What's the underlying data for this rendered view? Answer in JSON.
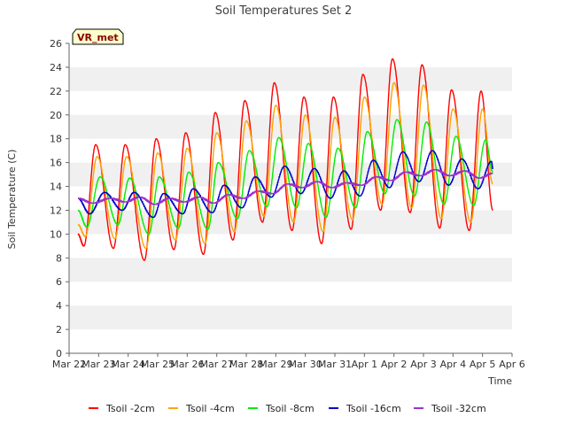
{
  "chart_data": {
    "type": "line",
    "title": "Soil Temperatures Set 2",
    "xlabel": "Time",
    "ylabel": "Soil Temperature (C)",
    "badge": "VR_met",
    "ylim": [
      0,
      26
    ],
    "yticks": [
      0,
      2,
      4,
      6,
      8,
      10,
      12,
      14,
      16,
      18,
      20,
      22,
      24,
      26
    ],
    "xlim": [
      0,
      15
    ],
    "xticks": [
      {
        "v": 0,
        "label": "Mar 22"
      },
      {
        "v": 1,
        "label": "Mar 23"
      },
      {
        "v": 2,
        "label": "Mar 24"
      },
      {
        "v": 3,
        "label": "Mar 25"
      },
      {
        "v": 4,
        "label": "Mar 26"
      },
      {
        "v": 5,
        "label": "Mar 27"
      },
      {
        "v": 6,
        "label": "Mar 28"
      },
      {
        "v": 7,
        "label": "Mar 29"
      },
      {
        "v": 8,
        "label": "Mar 30"
      },
      {
        "v": 9,
        "label": "Mar 31"
      },
      {
        "v": 10,
        "label": "Apr 1"
      },
      {
        "v": 11,
        "label": "Apr 2"
      },
      {
        "v": 12,
        "label": "Apr 3"
      },
      {
        "v": 13,
        "label": "Apr 4"
      },
      {
        "v": 14,
        "label": "Apr 5"
      },
      {
        "v": 15,
        "label": "Apr 6"
      }
    ],
    "grid": "horizontal alternating bands",
    "legend_position": "bottom",
    "series": [
      {
        "name": "Tsoil -2cm",
        "color": "#ff0000",
        "points": [
          [
            0.3,
            10.0
          ],
          [
            0.5,
            9.0
          ],
          [
            0.9,
            17.5
          ],
          [
            1.5,
            8.8
          ],
          [
            1.9,
            17.5
          ],
          [
            2.55,
            7.8
          ],
          [
            2.95,
            18.0
          ],
          [
            3.55,
            8.7
          ],
          [
            3.95,
            18.5
          ],
          [
            4.55,
            8.3
          ],
          [
            4.95,
            20.2
          ],
          [
            5.55,
            9.5
          ],
          [
            5.95,
            21.2
          ],
          [
            6.55,
            11.0
          ],
          [
            6.95,
            22.7
          ],
          [
            7.55,
            10.3
          ],
          [
            7.95,
            21.5
          ],
          [
            8.55,
            9.2
          ],
          [
            8.95,
            21.5
          ],
          [
            9.55,
            10.4
          ],
          [
            9.95,
            23.4
          ],
          [
            10.55,
            12.0
          ],
          [
            10.95,
            24.7
          ],
          [
            11.55,
            11.8
          ],
          [
            11.95,
            24.2
          ],
          [
            12.55,
            10.5
          ],
          [
            12.95,
            22.1
          ],
          [
            13.55,
            10.3
          ],
          [
            13.95,
            22.0
          ],
          [
            14.35,
            12.0
          ]
        ]
      },
      {
        "name": "Tsoil -4cm",
        "color": "#ffa500",
        "points": [
          [
            0.3,
            10.8
          ],
          [
            0.55,
            9.8
          ],
          [
            0.95,
            16.5
          ],
          [
            1.55,
            9.6
          ],
          [
            1.95,
            16.5
          ],
          [
            2.6,
            8.8
          ],
          [
            3.0,
            16.8
          ],
          [
            3.6,
            9.5
          ],
          [
            4.0,
            17.2
          ],
          [
            4.6,
            9.2
          ],
          [
            5.0,
            18.5
          ],
          [
            5.6,
            10.2
          ],
          [
            6.0,
            19.5
          ],
          [
            6.6,
            11.5
          ],
          [
            7.0,
            20.8
          ],
          [
            7.6,
            11.0
          ],
          [
            8.0,
            20.0
          ],
          [
            8.6,
            10.2
          ],
          [
            9.0,
            19.8
          ],
          [
            9.6,
            11.2
          ],
          [
            10.0,
            21.5
          ],
          [
            10.6,
            12.5
          ],
          [
            11.0,
            22.7
          ],
          [
            11.6,
            12.2
          ],
          [
            12.0,
            22.5
          ],
          [
            12.6,
            11.3
          ],
          [
            13.0,
            20.5
          ],
          [
            13.6,
            11.0
          ],
          [
            14.0,
            20.5
          ],
          [
            14.35,
            14.2
          ]
        ]
      },
      {
        "name": "Tsoil -8cm",
        "color": "#00ee00",
        "points": [
          [
            0.3,
            12.0
          ],
          [
            0.6,
            10.6
          ],
          [
            1.05,
            14.8
          ],
          [
            1.65,
            10.8
          ],
          [
            2.05,
            14.7
          ],
          [
            2.7,
            10.0
          ],
          [
            3.05,
            14.8
          ],
          [
            3.7,
            10.5
          ],
          [
            4.05,
            15.2
          ],
          [
            4.7,
            10.4
          ],
          [
            5.05,
            16.0
          ],
          [
            5.7,
            11.3
          ],
          [
            6.1,
            17.0
          ],
          [
            6.7,
            12.3
          ],
          [
            7.1,
            18.1
          ],
          [
            7.7,
            12.2
          ],
          [
            8.1,
            17.6
          ],
          [
            8.7,
            11.4
          ],
          [
            9.1,
            17.2
          ],
          [
            9.7,
            12.2
          ],
          [
            10.1,
            18.6
          ],
          [
            10.7,
            13.4
          ],
          [
            11.1,
            19.6
          ],
          [
            11.7,
            13.2
          ],
          [
            12.1,
            19.4
          ],
          [
            12.7,
            12.5
          ],
          [
            13.1,
            18.2
          ],
          [
            13.7,
            12.4
          ],
          [
            14.1,
            17.9
          ],
          [
            14.35,
            15.2
          ]
        ]
      },
      {
        "name": "Tsoil -16cm",
        "color": "#0000cc",
        "points": [
          [
            0.3,
            13.0
          ],
          [
            0.7,
            11.7
          ],
          [
            1.2,
            13.5
          ],
          [
            1.8,
            12.0
          ],
          [
            2.2,
            13.5
          ],
          [
            2.85,
            11.4
          ],
          [
            3.2,
            13.4
          ],
          [
            3.85,
            11.7
          ],
          [
            4.2,
            13.8
          ],
          [
            4.85,
            11.8
          ],
          [
            5.25,
            14.1
          ],
          [
            5.85,
            12.2
          ],
          [
            6.3,
            14.8
          ],
          [
            6.85,
            13.1
          ],
          [
            7.3,
            15.7
          ],
          [
            7.85,
            13.4
          ],
          [
            8.3,
            15.5
          ],
          [
            8.85,
            13.0
          ],
          [
            9.3,
            15.3
          ],
          [
            9.85,
            13.2
          ],
          [
            10.3,
            16.2
          ],
          [
            10.85,
            13.9
          ],
          [
            11.3,
            16.9
          ],
          [
            11.85,
            14.4
          ],
          [
            12.3,
            17.0
          ],
          [
            12.85,
            14.1
          ],
          [
            13.3,
            16.3
          ],
          [
            13.85,
            13.8
          ],
          [
            14.3,
            16.1
          ],
          [
            14.35,
            15.5
          ]
        ]
      },
      {
        "name": "Tsoil -32cm",
        "color": "#9932cc",
        "points": [
          [
            0.3,
            13.0
          ],
          [
            0.8,
            12.6
          ],
          [
            1.4,
            13.0
          ],
          [
            1.9,
            12.7
          ],
          [
            2.4,
            13.1
          ],
          [
            2.9,
            12.5
          ],
          [
            3.4,
            13.0
          ],
          [
            3.9,
            12.7
          ],
          [
            4.4,
            13.1
          ],
          [
            4.9,
            12.6
          ],
          [
            5.4,
            13.3
          ],
          [
            5.9,
            13.0
          ],
          [
            6.4,
            13.6
          ],
          [
            6.9,
            13.4
          ],
          [
            7.4,
            14.2
          ],
          [
            7.9,
            13.9
          ],
          [
            8.4,
            14.4
          ],
          [
            8.9,
            13.9
          ],
          [
            9.4,
            14.3
          ],
          [
            9.9,
            14.1
          ],
          [
            10.4,
            14.8
          ],
          [
            10.9,
            14.5
          ],
          [
            11.4,
            15.2
          ],
          [
            11.9,
            14.9
          ],
          [
            12.4,
            15.4
          ],
          [
            12.9,
            14.9
          ],
          [
            13.4,
            15.3
          ],
          [
            13.9,
            14.7
          ],
          [
            14.35,
            15.1
          ]
        ]
      }
    ]
  }
}
